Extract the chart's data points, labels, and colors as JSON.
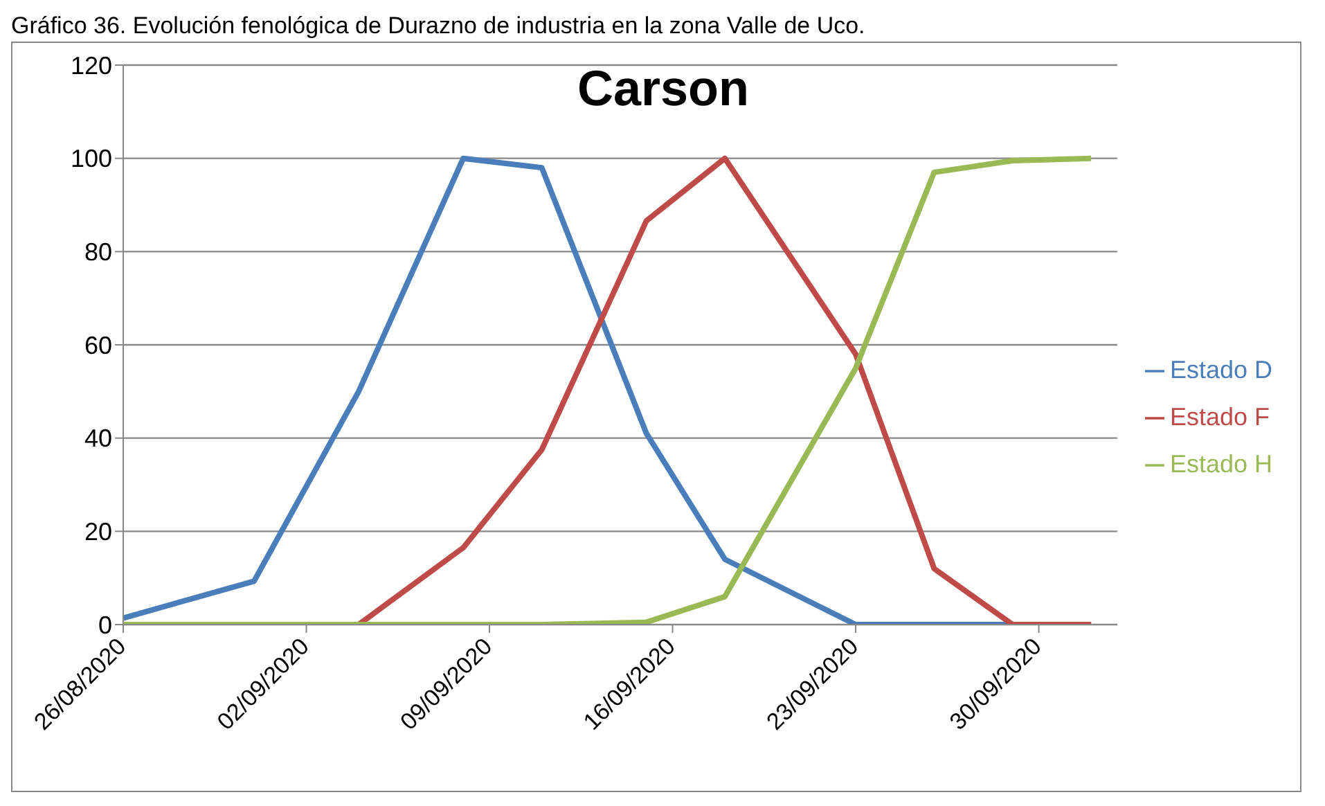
{
  "chart_data": {
    "type": "line",
    "title": "Carson",
    "annotations": [
      "Gráfico 36. Evolución fenológica de Durazno de industria en la zona Valle de Uco."
    ],
    "x": [
      "2020-08-26",
      "2020-08-31",
      "2020-09-04",
      "2020-09-08",
      "2020-09-11",
      "2020-09-15",
      "2020-09-18",
      "2020-09-23",
      "2020-09-26",
      "2020-09-29",
      "2020-10-02"
    ],
    "series": [
      {
        "name": "Estado D",
        "color": "#4a7ebb",
        "values": [
          1.4,
          9.3,
          50,
          100,
          98,
          41,
          14,
          0,
          0,
          0,
          0
        ]
      },
      {
        "name": "Estado F",
        "color": "#be4b48",
        "values": [
          null,
          null,
          0,
          16.5,
          37.5,
          86.6,
          100,
          58,
          12,
          0,
          0
        ]
      },
      {
        "name": "Estado H",
        "color": "#98b954",
        "values": [
          0,
          0,
          0,
          0,
          0,
          0.5,
          6,
          55,
          97,
          99.5,
          100
        ]
      }
    ],
    "xlim": [
      "2020-08-26",
      "2020-10-03"
    ],
    "xticks": [
      {
        "value": "2020-08-26",
        "label": "26/08/2020"
      },
      {
        "value": "2020-09-02",
        "label": "02/09/2020"
      },
      {
        "value": "2020-09-09",
        "label": "09/09/2020"
      },
      {
        "value": "2020-09-16",
        "label": "16/09/2020"
      },
      {
        "value": "2020-09-23",
        "label": "23/09/2020"
      },
      {
        "value": "2020-09-30",
        "label": "30/09/2020"
      }
    ],
    "ylim": [
      0,
      120
    ],
    "yticks": [
      0,
      20,
      40,
      60,
      80,
      100,
      120
    ],
    "grid": "y",
    "legend": "right",
    "marker": "none",
    "line_style": "solid"
  }
}
